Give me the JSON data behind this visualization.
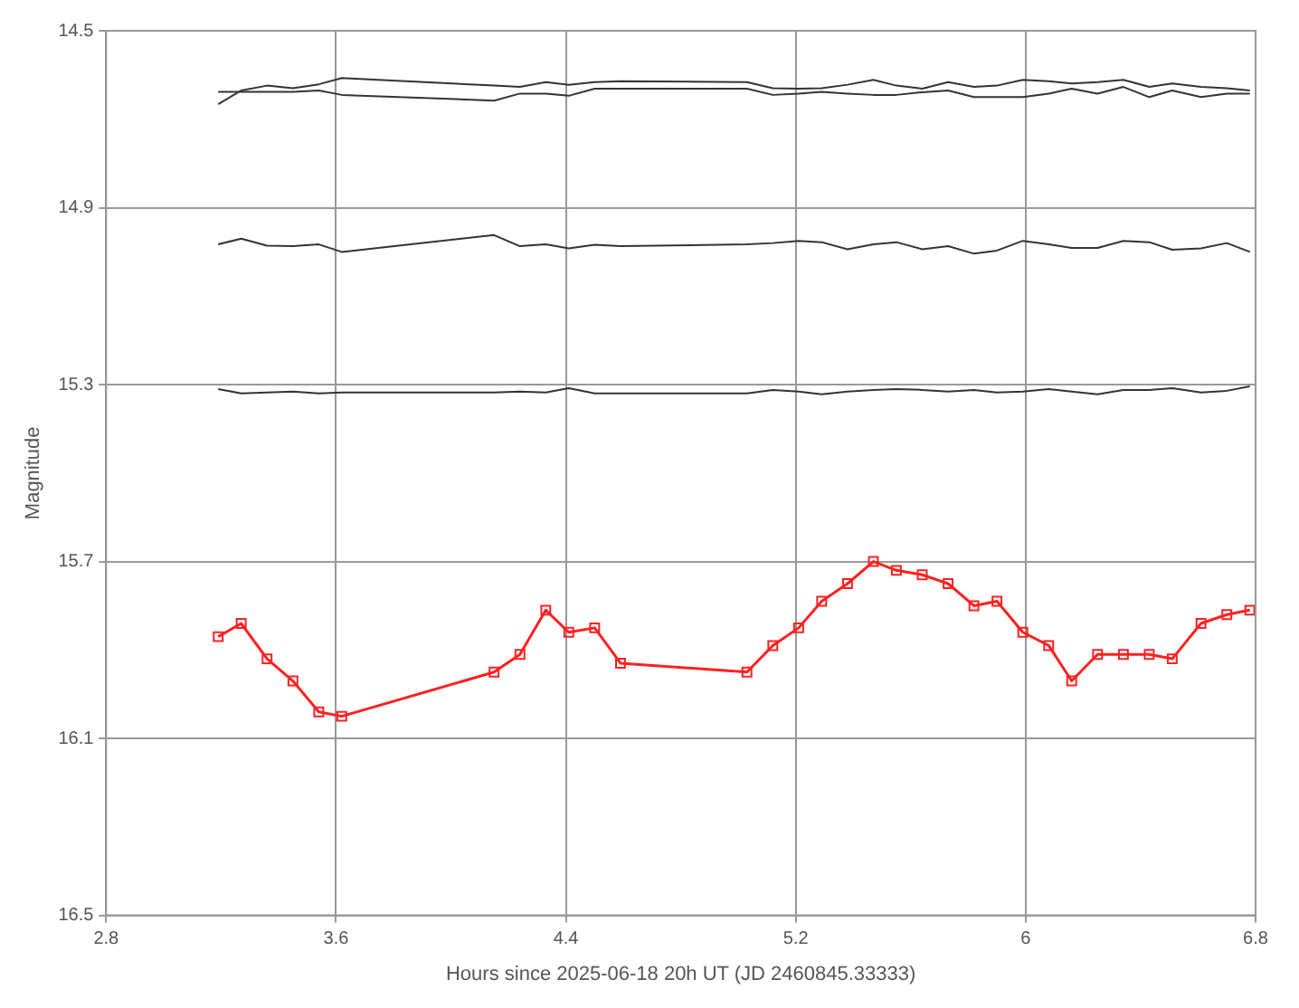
{
  "chart_data": {
    "type": "line",
    "xlabel": "Hours since 2025-06-18 20h UT (JD 2460845.33333)",
    "ylabel": "Magnitude",
    "x": [
      3.19,
      3.27,
      3.36,
      3.45,
      3.54,
      3.62,
      4.15,
      4.24,
      4.33,
      4.41,
      4.5,
      4.59,
      5.03,
      5.12,
      5.21,
      5.29,
      5.38,
      5.47,
      5.55,
      5.64,
      5.73,
      5.82,
      5.9,
      5.99,
      6.08,
      6.16,
      6.25,
      6.34,
      6.43,
      6.51,
      6.61,
      6.7,
      6.78
    ],
    "series": [
      {
        "color": "#333333",
        "marker": "none",
        "values": [
          14.666,
          14.635,
          14.624,
          14.63,
          14.621,
          14.607,
          14.624,
          14.627,
          14.616,
          14.622,
          14.616,
          14.614,
          14.616,
          14.63,
          14.631,
          14.63,
          14.622,
          14.611,
          14.624,
          14.631,
          14.616,
          14.627,
          14.624,
          14.611,
          14.614,
          14.619,
          14.616,
          14.611,
          14.627,
          14.619,
          14.627,
          14.63,
          14.635
        ]
      },
      {
        "color": "#333333",
        "marker": "none",
        "values": [
          14.638,
          14.638,
          14.638,
          14.638,
          14.635,
          14.645,
          14.658,
          14.642,
          14.642,
          14.647,
          14.631,
          14.631,
          14.631,
          14.645,
          14.642,
          14.638,
          14.642,
          14.645,
          14.645,
          14.639,
          14.635,
          14.65,
          14.65,
          14.65,
          14.642,
          14.631,
          14.642,
          14.627,
          14.65,
          14.635,
          14.65,
          14.642,
          14.642
        ]
      },
      {
        "color": "#333333",
        "marker": "none",
        "values": [
          14.983,
          14.97,
          14.986,
          14.987,
          14.983,
          15.0,
          14.962,
          14.987,
          14.983,
          14.992,
          14.984,
          14.987,
          14.983,
          14.98,
          14.975,
          14.978,
          14.994,
          14.983,
          14.978,
          14.994,
          14.987,
          15.004,
          14.997,
          14.975,
          14.983,
          14.991,
          14.991,
          14.975,
          14.978,
          14.995,
          14.992,
          14.98,
          15.0
        ]
      },
      {
        "color": "#333333",
        "marker": "none",
        "values": [
          15.31,
          15.32,
          15.318,
          15.316,
          15.32,
          15.318,
          15.318,
          15.316,
          15.318,
          15.308,
          15.32,
          15.32,
          15.32,
          15.312,
          15.316,
          15.322,
          15.316,
          15.312,
          15.31,
          15.312,
          15.316,
          15.312,
          15.318,
          15.316,
          15.31,
          15.316,
          15.322,
          15.312,
          15.312,
          15.308,
          15.318,
          15.314,
          15.304
        ]
      },
      {
        "color": "#ff2020",
        "marker": "square",
        "values": [
          15.87,
          15.84,
          15.92,
          15.97,
          16.04,
          16.05,
          15.95,
          15.91,
          15.81,
          15.86,
          15.85,
          15.93,
          15.95,
          15.89,
          15.85,
          15.79,
          15.75,
          15.7,
          15.72,
          15.73,
          15.75,
          15.8,
          15.79,
          15.86,
          15.89,
          15.97,
          15.91,
          15.91,
          15.91,
          15.92,
          15.84,
          15.82,
          15.81
        ]
      }
    ],
    "xlim": [
      2.8,
      6.8
    ],
    "xticks": [
      2.8,
      3.6,
      4.4,
      5.2,
      6,
      6.8
    ],
    "ylim": [
      16.5,
      14.5
    ],
    "yticks": [
      14.5,
      14.9,
      15.3,
      15.7,
      16.1,
      16.5
    ],
    "grid": true,
    "legend": false,
    "line_style": "solid"
  }
}
